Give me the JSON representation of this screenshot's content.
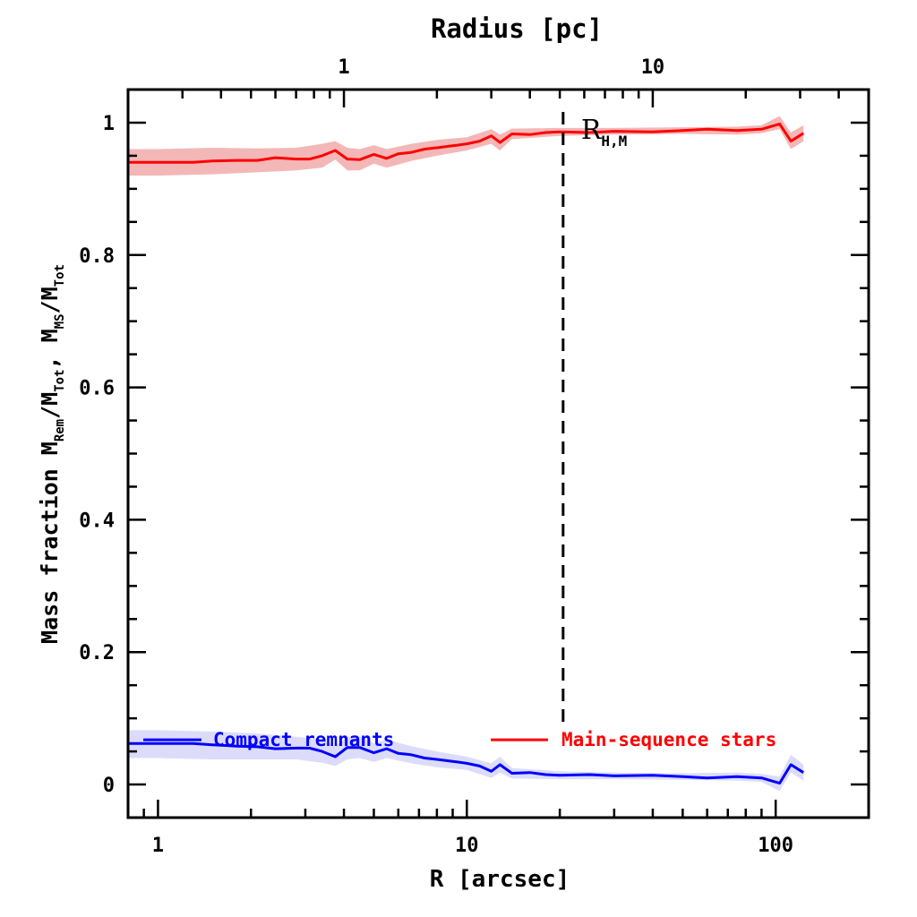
{
  "chart_data": {
    "type": "line",
    "xlabel": "R [arcsec]",
    "top_xlabel": "Radius [pc]",
    "ylabel_parts": {
      "prefix": "Mass fraction   M",
      "sub1": "Rem",
      "mid1": "/M",
      "sub2": "Tot",
      "mid2": ",  M",
      "sub3": "MS",
      "mid3": "/M",
      "sub4": "Tot"
    },
    "x_scale": "log",
    "xlim": [
      0.8,
      200
    ],
    "ylim": [
      -0.05,
      1.05
    ],
    "x_tick_labels": [
      {
        "value": 1,
        "label": "1"
      },
      {
        "value": 10,
        "label": "10"
      },
      {
        "value": 100,
        "label": "100"
      }
    ],
    "y_tick_labels": [
      {
        "value": 0,
        "label": "0"
      },
      {
        "value": 0.2,
        "label": "0.2"
      },
      {
        "value": 0.4,
        "label": "0.4"
      },
      {
        "value": 0.6,
        "label": "0.6"
      },
      {
        "value": 0.8,
        "label": "0.8"
      },
      {
        "value": 1,
        "label": "1"
      }
    ],
    "top_axis": {
      "scale": "log",
      "tick_labels": [
        {
          "value": 1,
          "label": "1",
          "x_arcsec": 4.0
        },
        {
          "value": 10,
          "label": "10",
          "x_arcsec": 40.0
        }
      ]
    },
    "vline": {
      "x": 20.5,
      "style": "dashed",
      "label_main": "R",
      "label_sub": "H,M"
    },
    "legend_position": "bottom",
    "series": [
      {
        "name": "Main-sequence stars",
        "color": "#ff0000",
        "band_color": "#f4b7b7",
        "points": [
          [
            0.8,
            0.94
          ],
          [
            1.0,
            0.94
          ],
          [
            1.3,
            0.94
          ],
          [
            1.5,
            0.942
          ],
          [
            1.8,
            0.943
          ],
          [
            2.1,
            0.943
          ],
          [
            2.4,
            0.947
          ],
          [
            2.8,
            0.945
          ],
          [
            3.1,
            0.945
          ],
          [
            3.4,
            0.95
          ],
          [
            3.75,
            0.958
          ],
          [
            4.1,
            0.945
          ],
          [
            4.5,
            0.944
          ],
          [
            5.0,
            0.952
          ],
          [
            5.5,
            0.946
          ],
          [
            6.0,
            0.953
          ],
          [
            6.6,
            0.955
          ],
          [
            7.3,
            0.96
          ],
          [
            8.0,
            0.962
          ],
          [
            9.0,
            0.965
          ],
          [
            10.0,
            0.968
          ],
          [
            11.0,
            0.972
          ],
          [
            12.0,
            0.98
          ],
          [
            12.8,
            0.97
          ],
          [
            14.0,
            0.983
          ],
          [
            16.0,
            0.982
          ],
          [
            18.0,
            0.985
          ],
          [
            20.0,
            0.986
          ],
          [
            25.0,
            0.985
          ],
          [
            30.0,
            0.987
          ],
          [
            40.0,
            0.986
          ],
          [
            50.0,
            0.988
          ],
          [
            60.0,
            0.99
          ],
          [
            75.0,
            0.988
          ],
          [
            90.0,
            0.99
          ],
          [
            103.0,
            0.998
          ],
          [
            112.0,
            0.972
          ],
          [
            123.0,
            0.984
          ]
        ],
        "band": [
          [
            0.8,
            0.92,
            0.96
          ],
          [
            1.0,
            0.92,
            0.96
          ],
          [
            1.5,
            0.922,
            0.962
          ],
          [
            2.1,
            0.925,
            0.961
          ],
          [
            2.8,
            0.928,
            0.962
          ],
          [
            3.4,
            0.932,
            0.968
          ],
          [
            3.75,
            0.944,
            0.972
          ],
          [
            4.1,
            0.928,
            0.962
          ],
          [
            4.5,
            0.928,
            0.96
          ],
          [
            5.0,
            0.938,
            0.966
          ],
          [
            5.5,
            0.932,
            0.96
          ],
          [
            6.6,
            0.942,
            0.968
          ],
          [
            8.0,
            0.95,
            0.974
          ],
          [
            10.0,
            0.958,
            0.978
          ],
          [
            12.0,
            0.968,
            0.99
          ],
          [
            12.8,
            0.958,
            0.982
          ],
          [
            14.0,
            0.975,
            0.991
          ],
          [
            20.0,
            0.98,
            0.992
          ],
          [
            30.0,
            0.982,
            0.992
          ],
          [
            50.0,
            0.983,
            0.993
          ],
          [
            75.0,
            0.982,
            0.994
          ],
          [
            90.0,
            0.984,
            0.996
          ],
          [
            103.0,
            0.99,
            1.01
          ],
          [
            112.0,
            0.96,
            0.985
          ],
          [
            123.0,
            0.972,
            0.996
          ]
        ]
      },
      {
        "name": "Compact remnants",
        "color": "#0000ff",
        "band_color": "#dcdcfa",
        "points": [
          [
            0.8,
            0.062
          ],
          [
            1.0,
            0.062
          ],
          [
            1.3,
            0.062
          ],
          [
            1.5,
            0.06
          ],
          [
            1.8,
            0.058
          ],
          [
            2.1,
            0.057
          ],
          [
            2.4,
            0.054
          ],
          [
            2.8,
            0.055
          ],
          [
            3.1,
            0.055
          ],
          [
            3.4,
            0.05
          ],
          [
            3.75,
            0.042
          ],
          [
            4.1,
            0.056
          ],
          [
            4.5,
            0.056
          ],
          [
            5.0,
            0.048
          ],
          [
            5.5,
            0.054
          ],
          [
            6.0,
            0.047
          ],
          [
            6.6,
            0.045
          ],
          [
            7.3,
            0.04
          ],
          [
            8.0,
            0.038
          ],
          [
            9.0,
            0.035
          ],
          [
            10.0,
            0.032
          ],
          [
            11.0,
            0.028
          ],
          [
            12.0,
            0.02
          ],
          [
            12.8,
            0.03
          ],
          [
            14.0,
            0.017
          ],
          [
            16.0,
            0.018
          ],
          [
            18.0,
            0.015
          ],
          [
            20.0,
            0.014
          ],
          [
            25.0,
            0.015
          ],
          [
            30.0,
            0.013
          ],
          [
            40.0,
            0.014
          ],
          [
            50.0,
            0.012
          ],
          [
            60.0,
            0.01
          ],
          [
            75.0,
            0.012
          ],
          [
            90.0,
            0.01
          ],
          [
            103.0,
            0.002
          ],
          [
            112.0,
            0.03
          ],
          [
            123.0,
            0.018
          ]
        ],
        "band": [
          [
            0.8,
            0.04,
            0.082
          ],
          [
            1.0,
            0.04,
            0.082
          ],
          [
            1.5,
            0.038,
            0.08
          ],
          [
            2.1,
            0.038,
            0.077
          ],
          [
            2.8,
            0.038,
            0.072
          ],
          [
            3.4,
            0.033,
            0.068
          ],
          [
            3.75,
            0.028,
            0.058
          ],
          [
            4.1,
            0.038,
            0.072
          ],
          [
            4.5,
            0.04,
            0.072
          ],
          [
            5.0,
            0.034,
            0.062
          ],
          [
            5.5,
            0.04,
            0.068
          ],
          [
            6.6,
            0.032,
            0.058
          ],
          [
            8.0,
            0.026,
            0.05
          ],
          [
            10.0,
            0.022,
            0.042
          ],
          [
            12.0,
            0.01,
            0.032
          ],
          [
            12.8,
            0.018,
            0.042
          ],
          [
            14.0,
            0.009,
            0.025
          ],
          [
            20.0,
            0.008,
            0.02
          ],
          [
            30.0,
            0.008,
            0.018
          ],
          [
            50.0,
            0.007,
            0.017
          ],
          [
            75.0,
            0.006,
            0.018
          ],
          [
            90.0,
            0.004,
            0.016
          ],
          [
            103.0,
            -0.01,
            0.012
          ],
          [
            112.0,
            0.018,
            0.045
          ],
          [
            123.0,
            0.006,
            0.03
          ]
        ]
      }
    ]
  }
}
